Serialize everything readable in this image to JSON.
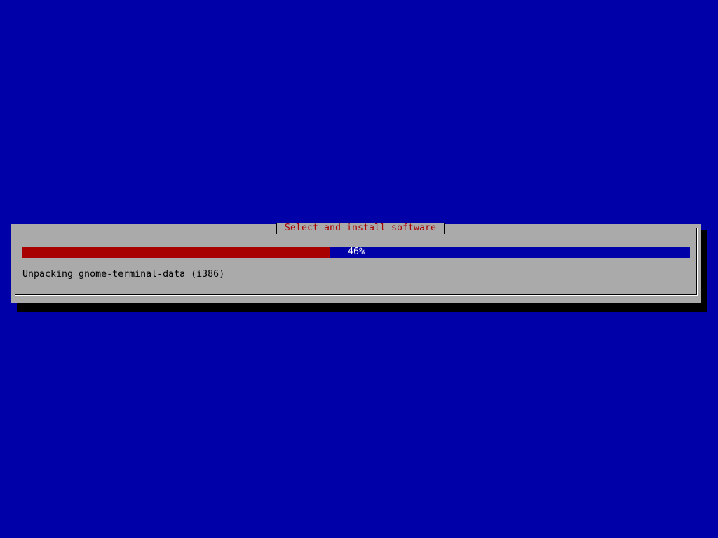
{
  "colors": {
    "background": "#0000a8",
    "dialog": "#aaaaaa",
    "title": "#a80000",
    "progress_fill": "#a80000",
    "progress_track": "#0000a8"
  },
  "dialog": {
    "title": "Select and install software",
    "progress": {
      "percent": 46,
      "label": "46%"
    },
    "message": "Unpacking gnome-terminal-data (i386)"
  }
}
